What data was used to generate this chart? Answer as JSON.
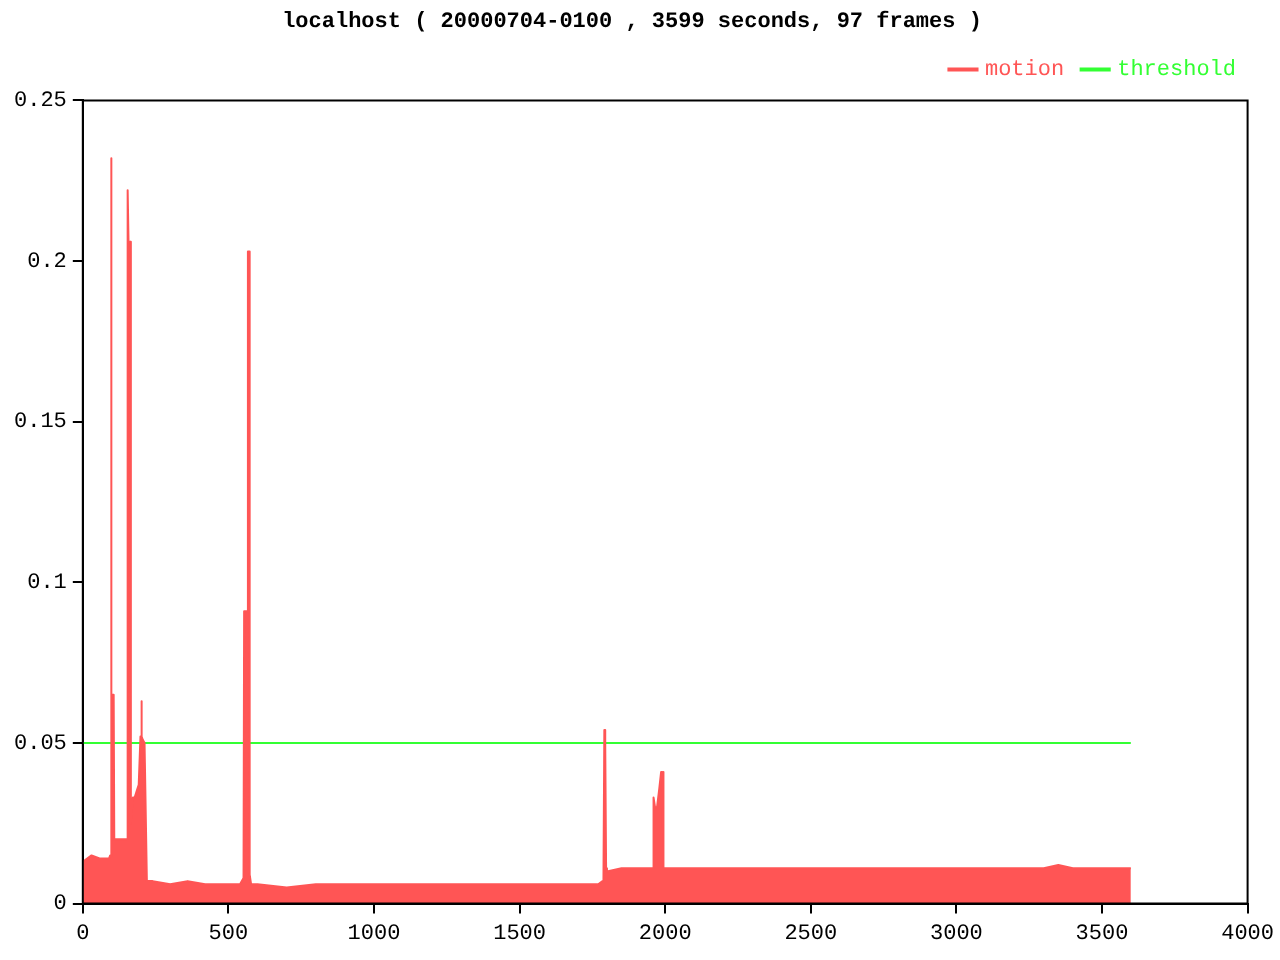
{
  "chart_data": {
    "type": "area",
    "title": "localhost ( 20000704-0100 , 3599 seconds, 97 frames )",
    "xlim": [
      0,
      4000
    ],
    "xticks": [
      0,
      500,
      1000,
      1500,
      2000,
      2500,
      3000,
      3500,
      4000
    ],
    "ylim": [
      0,
      0.25
    ],
    "yticks": [
      0,
      0.05,
      0.1,
      0.15,
      0.2,
      0.25
    ],
    "grid": false,
    "legend": "top right",
    "series": [
      {
        "name": "motion",
        "color": "#ff5555",
        "x": [
          0,
          30,
          60,
          90,
          94,
          96,
          98,
          100,
          106,
          108,
          130,
          150,
          153,
          155,
          157,
          163,
          165,
          172,
          178,
          185,
          192,
          198,
          201,
          203,
          206,
          212,
          217,
          220,
          240,
          300,
          360,
          420,
          480,
          540,
          552,
          554,
          563,
          567,
          570,
          573,
          578,
          600,
          700,
          800,
          900,
          1000,
          1100,
          1200,
          1300,
          1400,
          1500,
          1600,
          1700,
          1770,
          1785,
          1788,
          1791,
          1794,
          1797,
          1800,
          1850,
          1900,
          1955,
          1960,
          1965,
          1972,
          1980,
          1986,
          1990,
          1994,
          2000,
          2100,
          2200,
          2300,
          2400,
          2500,
          2600,
          2700,
          2800,
          2900,
          3000,
          3100,
          3200,
          3300,
          3350,
          3400,
          3500,
          3599
        ],
        "values": [
          0.013,
          0.015,
          0.014,
          0.014,
          0.015,
          0.232,
          0.065,
          0.065,
          0.065,
          0.02,
          0.02,
          0.02,
          0.02,
          0.222,
          0.206,
          0.206,
          0.025,
          0.033,
          0.033,
          0.035,
          0.037,
          0.052,
          0.063,
          0.052,
          0.051,
          0.05,
          0.05,
          0.007,
          0.007,
          0.006,
          0.007,
          0.006,
          0.006,
          0.006,
          0.008,
          0.091,
          0.091,
          0.203,
          0.203,
          0.009,
          0.006,
          0.006,
          0.005,
          0.006,
          0.006,
          0.006,
          0.006,
          0.006,
          0.006,
          0.006,
          0.006,
          0.006,
          0.006,
          0.006,
          0.007,
          0.008,
          0.054,
          0.05,
          0.011,
          0.01,
          0.011,
          0.011,
          0.011,
          0.033,
          0.03,
          0.03,
          0.036,
          0.041,
          0.041,
          0.011,
          0.011,
          0.011,
          0.011,
          0.011,
          0.011,
          0.011,
          0.011,
          0.011,
          0.011,
          0.011,
          0.011,
          0.011,
          0.011,
          0.011,
          0.012,
          0.011,
          0.011,
          0.011
        ]
      },
      {
        "name": "threshold",
        "color": "#33ff33",
        "type": "line",
        "x": [
          0,
          3599
        ],
        "values": [
          0.05,
          0.05
        ]
      }
    ]
  }
}
